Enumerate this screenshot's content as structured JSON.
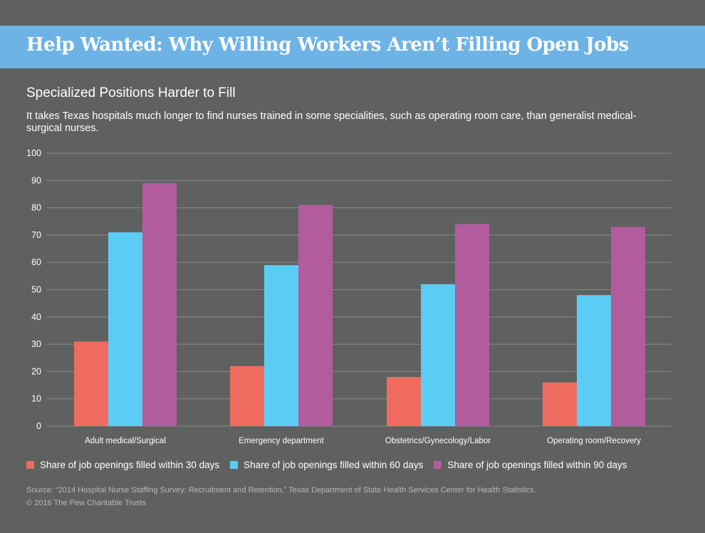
{
  "header": {
    "title": "Help Wanted: Why Willing Workers Aren’t Filling Open Jobs",
    "banner_color": "#6db3e6"
  },
  "subtitle": "Specialized Positions Harder to Fill",
  "description": "It takes Texas hospitals much longer to find nurses trained in some specialities, such as operating room care, than generalist medical-surgical nurses.",
  "chart_data": {
    "type": "bar",
    "categories": [
      "Adult medical/Surgical",
      "Emergency department",
      "Obstetrics/Gynecology/Labor",
      "Operating room/Recovery"
    ],
    "series": [
      {
        "name": "Share of job openings filled within 30 days",
        "values": [
          31,
          22,
          18,
          16
        ],
        "color": "#ef6b60"
      },
      {
        "name": "Share of job openings filled within 60 days",
        "values": [
          71,
          59,
          52,
          48
        ],
        "color": "#5bcdf4"
      },
      {
        "name": "Share of job openings filled within 90 days",
        "values": [
          89,
          81,
          74,
          73
        ],
        "color": "#b35c9d"
      }
    ],
    "ylim": [
      0,
      100
    ],
    "yticks": [
      0,
      10,
      20,
      30,
      40,
      50,
      60,
      70,
      80,
      90,
      100
    ],
    "grid": true,
    "legend_position": "bottom"
  },
  "footer": {
    "source": "Source: “2014 Hospital Nurse Staffing Survey: Recruitment and Retention,” Texas Department of State Health Services Center for Health Statistics.",
    "copyright": "© 2016 The Pew Charitable Trusts"
  }
}
